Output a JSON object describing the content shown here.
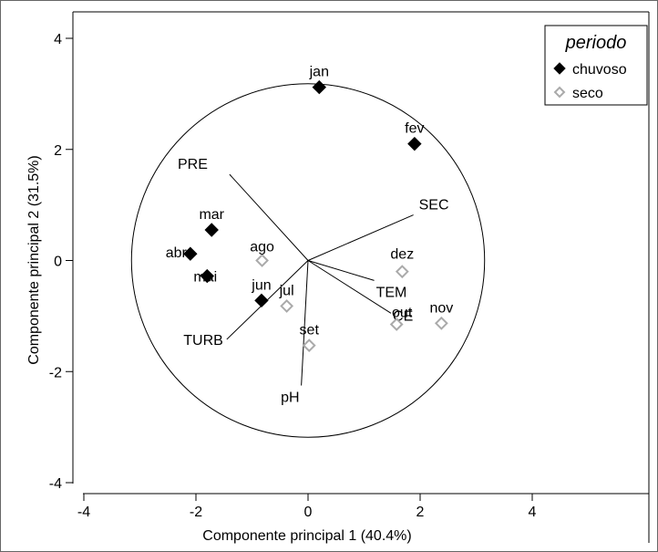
{
  "chart_data": {
    "type": "scatter",
    "subtype": "pca-biplot",
    "xlabel": "Componente principal 1 (40.4%)",
    "ylabel": "Componente principal 2 (31.5%)",
    "xlim": [
      -4,
      4
    ],
    "ylim": [
      -4,
      4
    ],
    "xticks": [
      -4,
      -2,
      0,
      2,
      4
    ],
    "yticks": [
      -4,
      -2,
      0,
      2,
      4
    ],
    "xtick_labels": [
      "-4",
      "-2",
      "0",
      "2",
      "4"
    ],
    "ytick_labels": [
      "-4",
      "-2",
      "0",
      "2",
      "4"
    ],
    "grid": false,
    "legend": {
      "title": "periodo",
      "placement": "top-right",
      "entries": [
        {
          "label": "chuvoso",
          "marker": "filled-diamond",
          "color": "#000000"
        },
        {
          "label": "seco",
          "marker": "open-diamond",
          "color": "#aaaaaa"
        }
      ]
    },
    "circle": {
      "center": [
        0,
        0
      ],
      "radius": 3.15
    },
    "series": [
      {
        "name": "chuvoso",
        "color": "#000000",
        "marker": "filled-diamond",
        "points": [
          {
            "label": "jan",
            "x": 0.2,
            "y": 3.12
          },
          {
            "label": "fev",
            "x": 1.9,
            "y": 2.1
          },
          {
            "label": "mar",
            "x": -1.72,
            "y": 0.55
          },
          {
            "label": "abr",
            "x": -2.1,
            "y": 0.12
          },
          {
            "label": "mai",
            "x": -1.8,
            "y": -0.28
          },
          {
            "label": "jun",
            "x": -0.83,
            "y": -0.72
          }
        ]
      },
      {
        "name": "seco",
        "color": "#aaaaaa",
        "marker": "open-diamond",
        "points": [
          {
            "label": "ago",
            "x": -0.82,
            "y": 0.0
          },
          {
            "label": "jul",
            "x": -0.38,
            "y": -0.82
          },
          {
            "label": "set",
            "x": 0.02,
            "y": -1.53
          },
          {
            "label": "out",
            "x": 1.58,
            "y": -1.15
          },
          {
            "label": "dez",
            "x": 1.68,
            "y": -0.2
          },
          {
            "label": "nov",
            "x": 2.38,
            "y": -1.13
          }
        ]
      }
    ],
    "vectors": [
      {
        "label": "PRE",
        "x": -1.4,
        "y": 1.55
      },
      {
        "label": "SEC",
        "x": 1.88,
        "y": 0.82
      },
      {
        "label": "TEM",
        "x": 1.18,
        "y": -0.36
      },
      {
        "label": "CE",
        "x": 1.48,
        "y": -0.95
      },
      {
        "label": "TURB",
        "x": -1.45,
        "y": -1.42
      },
      {
        "label": "pH",
        "x": -0.12,
        "y": -2.25
      }
    ]
  }
}
